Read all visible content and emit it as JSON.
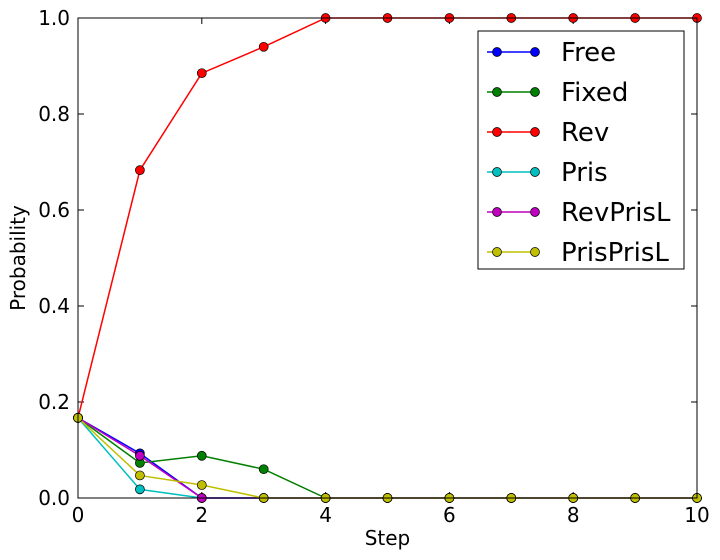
{
  "chart_data": {
    "type": "line",
    "title": "",
    "xlabel": "Step",
    "ylabel": "Probability",
    "xlim": [
      0,
      10
    ],
    "ylim": [
      0,
      1
    ],
    "grid": false,
    "legend_position": "top-right",
    "x": [
      0,
      1,
      2,
      3,
      4,
      5,
      6,
      7,
      8,
      9,
      10
    ],
    "x_ticks": [
      "0",
      "2",
      "4",
      "6",
      "8",
      "10"
    ],
    "y_ticks": [
      "0.0",
      "0.2",
      "0.4",
      "0.6",
      "0.8",
      "1.0"
    ],
    "series": [
      {
        "name": "Free",
        "color": "#0000ff",
        "values": [
          0.167,
          0.093,
          0.0,
          0.0,
          0.0,
          0.0,
          0.0,
          0.0,
          0.0,
          0.0,
          0.0
        ]
      },
      {
        "name": "Fixed",
        "color": "#008000",
        "values": [
          0.167,
          0.073,
          0.088,
          0.06,
          0.0,
          0.0,
          0.0,
          0.0,
          0.0,
          0.0,
          0.0
        ]
      },
      {
        "name": "Rev",
        "color": "#ff0000",
        "values": [
          0.167,
          0.683,
          0.885,
          0.94,
          1.0,
          1.0,
          1.0,
          1.0,
          1.0,
          1.0,
          1.0
        ]
      },
      {
        "name": "Pris",
        "color": "#00bfbf",
        "values": [
          0.167,
          0.018,
          0.0,
          0.0,
          0.0,
          0.0,
          0.0,
          0.0,
          0.0,
          0.0,
          0.0
        ]
      },
      {
        "name": "RevPrisL",
        "color": "#bf00bf",
        "values": [
          0.167,
          0.088,
          0.0,
          0.0,
          0.0,
          0.0,
          0.0,
          0.0,
          0.0,
          0.0,
          0.0
        ]
      },
      {
        "name": "PrisPrisL",
        "color": "#bfbf00",
        "values": [
          0.167,
          0.047,
          0.027,
          0.0,
          0.0,
          0.0,
          0.0,
          0.0,
          0.0,
          0.0,
          0.0
        ]
      }
    ]
  }
}
